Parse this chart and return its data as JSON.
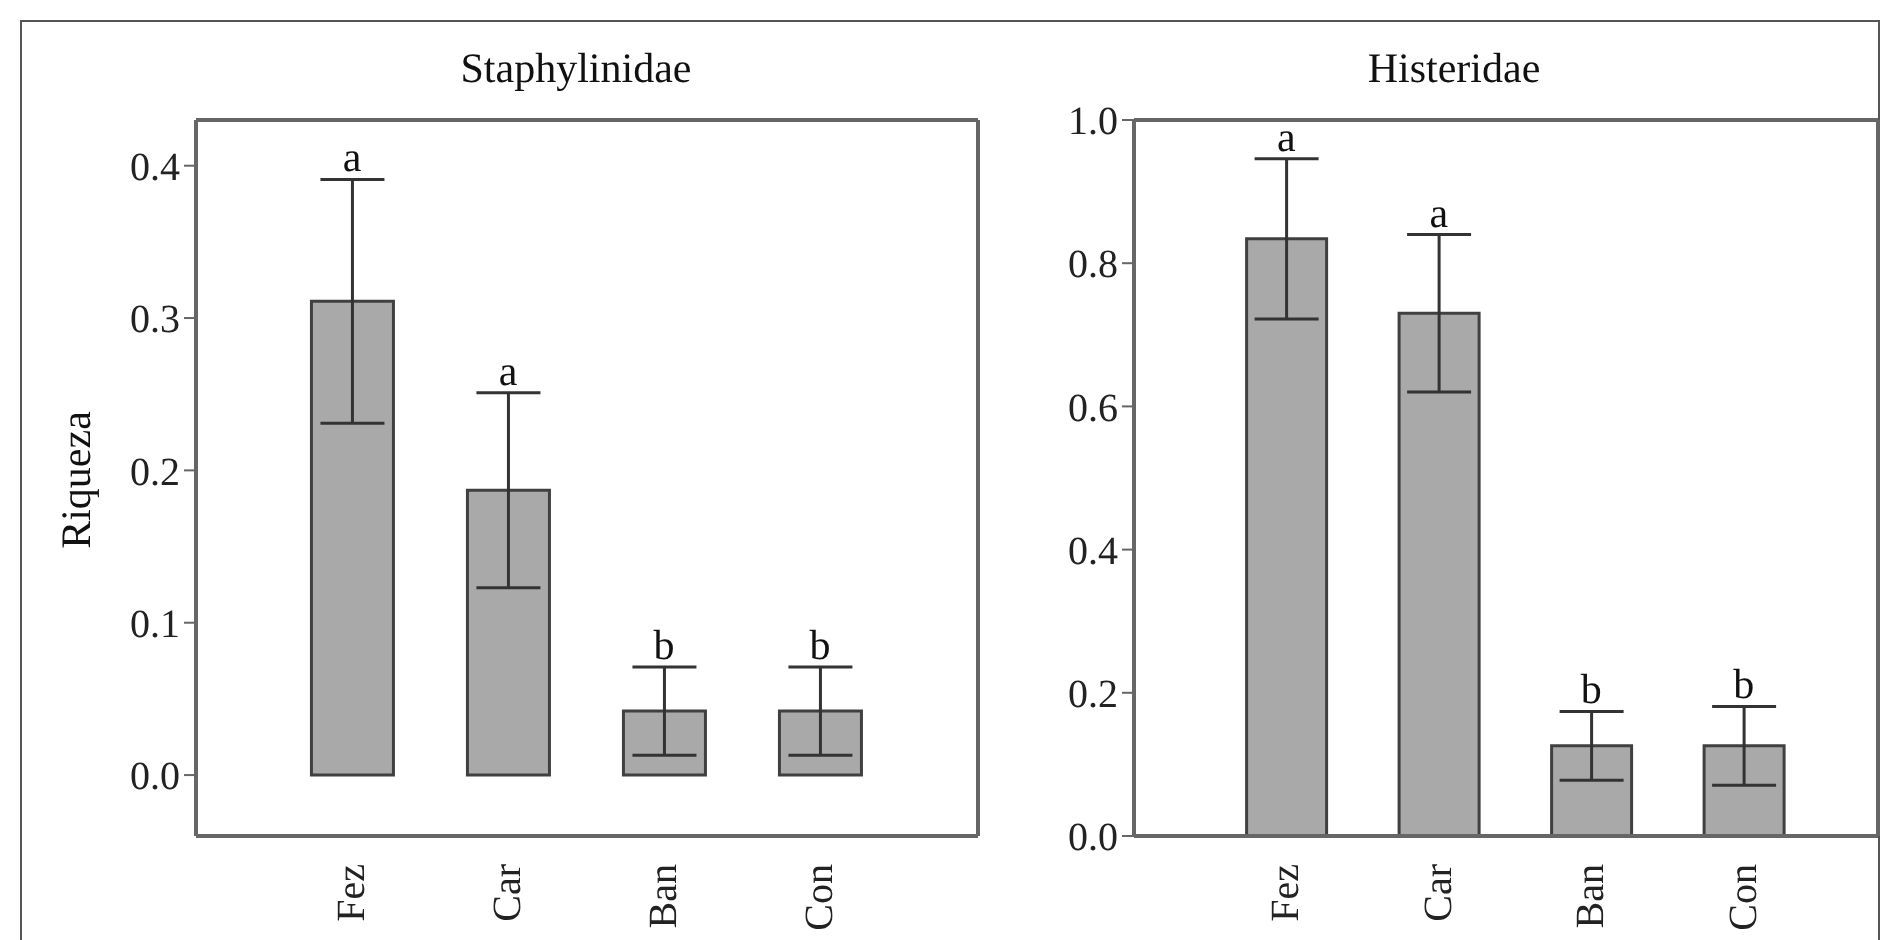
{
  "chart_data": [
    {
      "type": "bar",
      "title": "Staphylinidae",
      "ylabel": "Riqueza",
      "categories": [
        "Fez",
        "Car",
        "Ban",
        "Con"
      ],
      "series": [
        {
          "color": "#a9a9a9",
          "values": [
            0.311,
            0.187,
            0.042,
            0.042
          ],
          "errors": [
            0.08,
            0.064,
            0.029,
            0.029
          ]
        }
      ],
      "ylim": [
        -0.04,
        0.43
      ],
      "yticks": [
        {
          "value": 0,
          "label": "0.0"
        },
        {
          "value": 0.1,
          "label": "0.1"
        },
        {
          "value": 0.2,
          "label": "0.2"
        },
        {
          "value": 0.3,
          "label": "0.3"
        },
        {
          "value": 0.4,
          "label": "0.4"
        }
      ],
      "annotations": [
        {
          "text": "a",
          "x": "Fez",
          "y": 0.391
        },
        {
          "text": "a",
          "x": "Car",
          "y": 0.251
        },
        {
          "text": "b",
          "x": "Ban",
          "y": 0.071
        },
        {
          "text": "b",
          "x": "Con",
          "y": 0.071
        }
      ],
      "grid": false,
      "legend": false
    },
    {
      "type": "bar",
      "title": "Histeridae",
      "categories": [
        "Fez",
        "Car",
        "Ban",
        "Con"
      ],
      "series": [
        {
          "color": "#a9a9a9",
          "values": [
            0.834,
            0.73,
            0.126,
            0.126
          ],
          "errors": [
            0.112,
            0.11,
            0.048,
            0.055
          ]
        }
      ],
      "ylim": [
        0,
        1.0
      ],
      "yticks": [
        {
          "value": 0,
          "label": "0.0"
        },
        {
          "value": 0.2,
          "label": "0.2"
        },
        {
          "value": 0.4,
          "label": "0.4"
        },
        {
          "value": 0.6,
          "label": "0.6"
        },
        {
          "value": 0.8,
          "label": "0.8"
        },
        {
          "value": 1.0,
          "label": "1.0"
        }
      ],
      "annotations": [
        {
          "text": "a",
          "x": "Fez",
          "y": 0.946
        },
        {
          "text": "a",
          "x": "Car",
          "y": 0.84
        },
        {
          "text": "b",
          "x": "Ban",
          "y": 0.174
        },
        {
          "text": "b",
          "x": "Con",
          "y": 0.181
        }
      ],
      "grid": false,
      "legend": false
    }
  ]
}
